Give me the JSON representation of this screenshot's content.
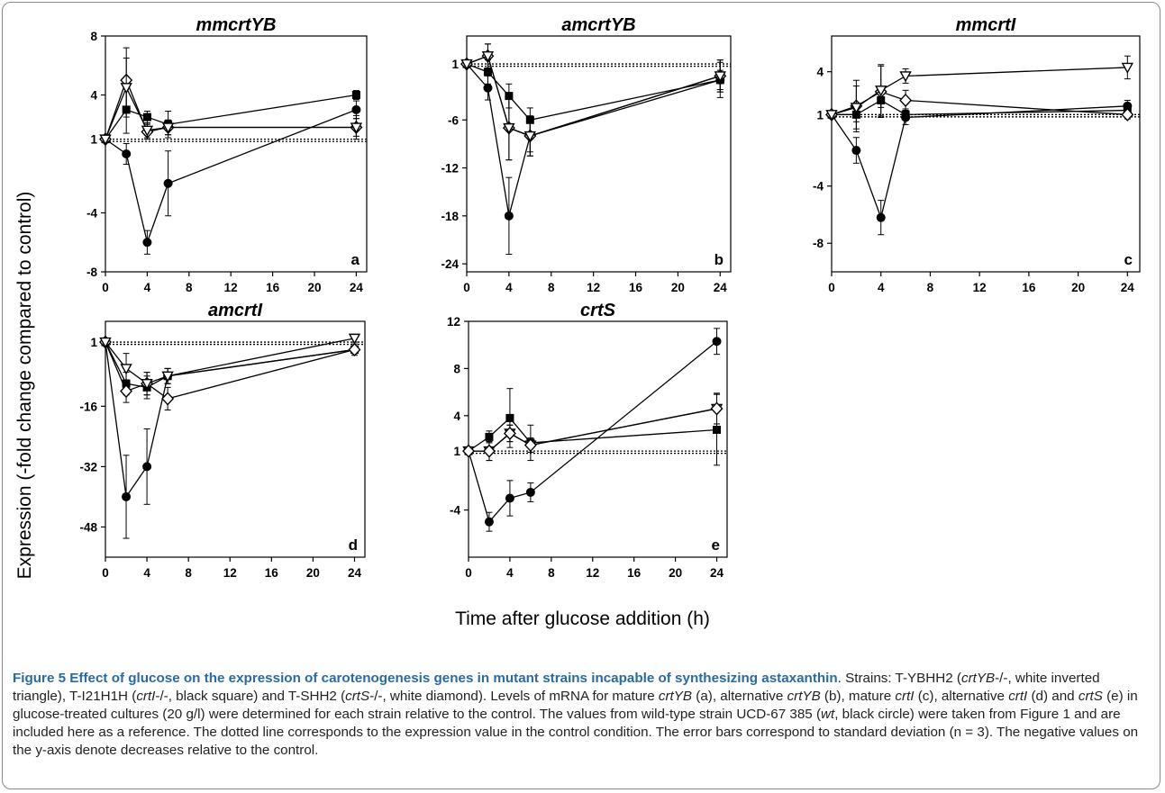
{
  "figure": {
    "y_label": "Expression (-fold change compared to control)",
    "x_label": "Time after glucose addition (h)"
  },
  "caption": {
    "title": "Figure 5 Effect of glucose on the expression of carotenogenesis genes in mutant strains incapable of synthesizing astaxanthin",
    "p1": ". Strains: T-YBHH2 (",
    "i1": "crtYB",
    "p2": "-/-, white inverted triangle), T-I21H1H (",
    "i2": "crtI",
    "p3": "-/-, black square) and T-SHH2 (",
    "i3": "crtS",
    "p4": "-/-, white diamond). Levels of mRNA for mature ",
    "i4": "crtYB",
    "p5": " (a), alternative ",
    "i5": "crtYB",
    "p6": " (b), mature ",
    "i6": "crtI",
    "p7": " (c), alternative ",
    "i7": "crtI",
    "p8": " (d) and ",
    "i8": "crtS",
    "p9": " (e) in glucose-treated cultures (20 g/l) were determined for each strain relative to the control. The values from wild-type strain UCD-67 385 (",
    "i9": "wt",
    "p10": ", black circle) were taken from Figure 1 and are included here as a reference. The dotted line corresponds to the expression value in the control condition. The error bars correspond to standard deviation (n = 3). The negative values on the y-axis denote decreases relative to the control."
  },
  "chart_data": [
    {
      "type": "line",
      "title": "mmcrtYB",
      "panel_letter": "a",
      "x": [
        0,
        2,
        4,
        6,
        24
      ],
      "xticks": [
        "0",
        "4",
        "8",
        "12",
        "16",
        "20",
        "24"
      ],
      "xlim": [
        0,
        25
      ],
      "yticks": [
        "8",
        "4",
        "1",
        "-4",
        "-8"
      ],
      "ylim": [
        -8,
        8
      ],
      "control_line": 1,
      "series": [
        {
          "marker": "circle-filled",
          "values": [
            1,
            0,
            -6,
            -2,
            3
          ],
          "errors": [
            0,
            0.7,
            0.8,
            2.2,
            0.6
          ]
        },
        {
          "marker": "square-filled",
          "values": [
            1,
            3,
            2.5,
            2,
            4
          ],
          "errors": [
            0,
            1.6,
            0.4,
            0.9,
            0.3
          ]
        },
        {
          "marker": "diamond-open",
          "values": [
            1,
            5,
            1.5,
            1.8,
            1.8
          ],
          "errors": [
            0,
            2.2,
            0.5,
            0.5,
            0.8
          ]
        },
        {
          "marker": "triangle-open",
          "values": [
            1,
            4.5,
            1.6,
            1.8,
            1.8
          ],
          "errors": [
            0,
            2,
            0.5,
            0.5,
            0.6
          ]
        }
      ]
    },
    {
      "type": "line",
      "title": "amcrtYB",
      "panel_letter": "b",
      "x": [
        0,
        2,
        4,
        6,
        24
      ],
      "xticks": [
        "0",
        "4",
        "8",
        "12",
        "16",
        "20",
        "24"
      ],
      "xlim": [
        0,
        25
      ],
      "yticks": [
        "1",
        "-6",
        "-12",
        "-18",
        "-24"
      ],
      "ylim": [
        -25,
        4.5
      ],
      "control_line": 1,
      "series": [
        {
          "marker": "circle-filled",
          "values": [
            1,
            -2,
            -18,
            -8,
            -1
          ],
          "errors": [
            0,
            1.5,
            4.8,
            2,
            2.2
          ]
        },
        {
          "marker": "square-filled",
          "values": [
            1,
            0,
            -3,
            -6,
            -1
          ],
          "errors": [
            0,
            1.5,
            1.5,
            1.5,
            1.2
          ]
        },
        {
          "marker": "diamond-open",
          "values": [
            1,
            2,
            -7,
            -8,
            -0.5
          ],
          "errors": [
            0,
            1.5,
            4,
            2.5,
            2
          ]
        },
        {
          "marker": "triangle-open",
          "values": [
            1,
            2,
            -7,
            -8,
            -0.5
          ],
          "errors": [
            0,
            1.5,
            4,
            2.5,
            2
          ]
        }
      ]
    },
    {
      "type": "line",
      "title": "mmcrtI",
      "panel_letter": "c",
      "x": [
        0,
        2,
        4,
        6,
        24
      ],
      "xticks": [
        "0",
        "4",
        "8",
        "12",
        "16",
        "20",
        "24"
      ],
      "xlim": [
        0,
        25
      ],
      "yticks": [
        "4",
        "1",
        "-4",
        "-8"
      ],
      "ylim": [
        -10,
        6.5
      ],
      "control_line": 1,
      "series": [
        {
          "marker": "circle-filled",
          "values": [
            1,
            -1.5,
            -6.2,
            0.8,
            1.6
          ],
          "errors": [
            0,
            0.9,
            1.2,
            0.5,
            0.4
          ]
        },
        {
          "marker": "square-filled",
          "values": [
            1,
            1,
            2,
            1,
            1.3
          ],
          "errors": [
            0,
            0.5,
            0.5,
            0.4,
            0.3
          ]
        },
        {
          "marker": "diamond-open",
          "values": [
            1,
            1.6,
            2.6,
            2,
            1
          ],
          "errors": [
            0,
            1.8,
            1.8,
            0.7,
            0.3
          ]
        },
        {
          "marker": "triangle-open",
          "values": [
            1,
            1.5,
            2.7,
            3.7,
            4.3
          ],
          "errors": [
            0,
            1.5,
            1.8,
            0.5,
            0.8
          ]
        }
      ]
    },
    {
      "type": "line",
      "title": "amcrtI",
      "panel_letter": "d",
      "x": [
        0,
        2,
        4,
        6,
        24
      ],
      "xticks": [
        "0",
        "4",
        "8",
        "12",
        "16",
        "20",
        "24"
      ],
      "xlim": [
        0,
        25
      ],
      "yticks": [
        "1",
        "-16",
        "-32",
        "-48"
      ],
      "ylim": [
        -56,
        6.5
      ],
      "control_line": 1,
      "series": [
        {
          "marker": "circle-filled",
          "values": [
            1,
            -40,
            -32,
            -8,
            -1
          ],
          "errors": [
            0,
            11,
            10,
            2,
            1.5
          ]
        },
        {
          "marker": "square-filled",
          "values": [
            1,
            -10,
            -11,
            -8,
            -1
          ],
          "errors": [
            0,
            3,
            3,
            2,
            1
          ]
        },
        {
          "marker": "diamond-open",
          "values": [
            1,
            -12,
            -10,
            -14,
            -1
          ],
          "errors": [
            0,
            3,
            3,
            3,
            1
          ]
        },
        {
          "marker": "triangle-open",
          "values": [
            1,
            -6,
            -10,
            -8,
            2
          ],
          "errors": [
            0,
            4,
            3,
            2,
            1
          ]
        }
      ]
    },
    {
      "type": "line",
      "title": "crtS",
      "panel_letter": "e",
      "x": [
        0,
        2,
        4,
        6,
        24
      ],
      "xticks": [
        "0",
        "4",
        "8",
        "12",
        "16",
        "20",
        "24"
      ],
      "xlim": [
        0,
        25
      ],
      "yticks": [
        "12",
        "8",
        "4",
        "1",
        "-4"
      ],
      "ylim": [
        -8,
        12
      ],
      "control_line": 1,
      "series": [
        {
          "marker": "circle-filled",
          "values": [
            1,
            -5,
            -3,
            -2.5,
            10.3
          ],
          "errors": [
            0,
            0.8,
            1.5,
            0.8,
            1.1
          ]
        },
        {
          "marker": "square-filled",
          "values": [
            1,
            2.2,
            3.8,
            1.7,
            2.8
          ],
          "errors": [
            0,
            0.5,
            2.5,
            1.5,
            3
          ]
        },
        {
          "marker": "triangle-open",
          "values": [
            1,
            1,
            2.5,
            1.5,
            4.6
          ],
          "errors": [
            0,
            0.8,
            0.7,
            0.6,
            1.3
          ]
        },
        {
          "marker": "diamond-open",
          "values": [
            1,
            1,
            2.5,
            1.5,
            4.6
          ],
          "errors": [
            0,
            0.8,
            0.7,
            0.6,
            1.3
          ]
        }
      ]
    }
  ]
}
